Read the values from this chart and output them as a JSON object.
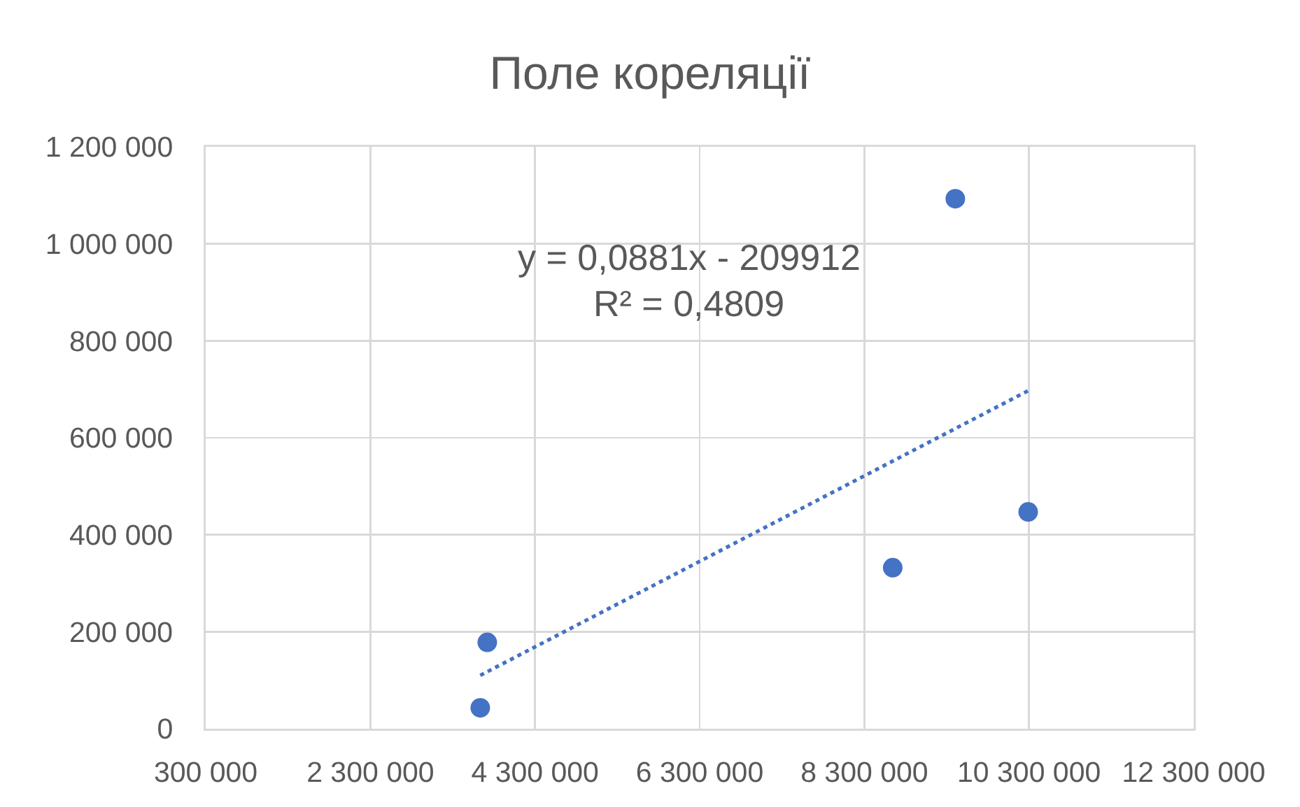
{
  "chart_data": {
    "type": "scatter",
    "title": "Поле кореляції",
    "series": [
      {
        "color": "#4472c4",
        "marker": "circle",
        "x": [
          3635000,
          3720000,
          8645000,
          9405000,
          10290000
        ],
        "values": [
          43000,
          178000,
          332000,
          1093000,
          447000
        ]
      },
      {
        "type": "line",
        "color": "#4472c4",
        "marker": "none",
        "line_style": "dotted",
        "x": [
          3635000,
          10290000
        ],
        "values": [
          110000,
          697000
        ]
      }
    ],
    "xlim": [
      300000,
      12300000
    ],
    "xticks": [
      {
        "value": 300000,
        "label": "300 000"
      },
      {
        "value": 2300000,
        "label": "2 300 000"
      },
      {
        "value": 4300000,
        "label": "4 300 000"
      },
      {
        "value": 6300000,
        "label": "6 300 000"
      },
      {
        "value": 8300000,
        "label": "8 300 000"
      },
      {
        "value": 10300000,
        "label": "10 300 000"
      },
      {
        "value": 12300000,
        "label": "12 300 000"
      }
    ],
    "ylim": [
      0,
      1200000
    ],
    "yticks": [
      0,
      {
        "value": 200000,
        "label": "200 000"
      },
      {
        "value": 400000,
        "label": "400 000"
      },
      {
        "value": 600000,
        "label": "600 000"
      },
      {
        "value": 800000,
        "label": "800 000"
      },
      {
        "value": 1000000,
        "label": "1 000 000"
      },
      {
        "value": 1200000,
        "label": "1 200 000"
      }
    ],
    "grid": true,
    "annotations": [
      "y = 0,0881x - 209912",
      "R² = 0,4809"
    ]
  }
}
